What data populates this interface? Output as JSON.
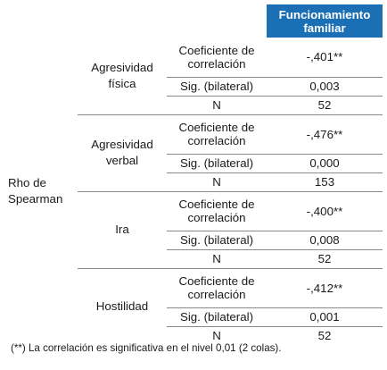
{
  "header": {
    "col": "Funcionamiento familiar"
  },
  "rho_label": "Rho de Spearman",
  "stat_labels": {
    "coef": "Coeficiente de correlación",
    "sig": "Sig. (bilateral)",
    "n": "N"
  },
  "groups": [
    {
      "name": "Agresividad física",
      "coef": "-,401**",
      "sig": "0,003",
      "n": "52"
    },
    {
      "name": "Agresividad verbal",
      "coef": "-,476**",
      "sig": "0,000",
      "n": "153"
    },
    {
      "name": "Ira",
      "coef": "-,400**",
      "sig": "0,008",
      "n": "52"
    },
    {
      "name": "Hostilidad",
      "coef": "-,412**",
      "sig": "0,001",
      "n": "52"
    }
  ],
  "note": "(**) La correlación es significativa en el nivel 0,01 (2 colas)."
}
